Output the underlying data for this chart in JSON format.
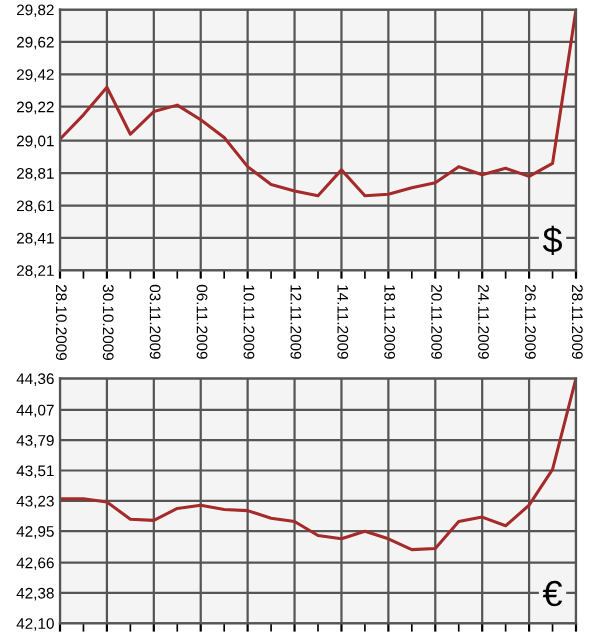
{
  "chart_data": [
    {
      "type": "line",
      "categories": [
        "28.10.2009",
        null,
        "30.10.2009",
        null,
        "03.11.2009",
        null,
        "06.11.2009",
        null,
        "10.11.2009",
        null,
        "12.11.2009",
        null,
        "14.11.2009",
        null,
        "18.11.2009",
        null,
        "20.11.2009",
        null,
        "24.11.2009",
        null,
        "26.11.2009",
        null,
        "28.11.2009"
      ],
      "series": [
        {
          "color": "#a52a2a",
          "values": [
            29.02,
            29.17,
            29.34,
            29.05,
            29.19,
            29.23,
            29.14,
            29.03,
            28.85,
            28.74,
            28.7,
            28.67,
            28.83,
            28.67,
            28.68,
            28.72,
            28.75,
            28.85,
            28.8,
            28.84,
            28.79,
            28.87,
            29.82
          ]
        }
      ],
      "ylim": [
        28.21,
        29.82
      ],
      "yticks": [
        {
          "value": 28.21,
          "label": "28,21"
        },
        {
          "value": 28.41,
          "label": "28,41"
        },
        {
          "value": 28.61,
          "label": "28,61"
        },
        {
          "value": 28.81,
          "label": "28,81"
        },
        {
          "value": 29.01,
          "label": "29,01"
        },
        {
          "value": 29.22,
          "label": "29,22"
        },
        {
          "value": 29.42,
          "label": "29,42"
        },
        {
          "value": 29.62,
          "label": "29,62"
        },
        {
          "value": 29.82,
          "label": "29,82"
        }
      ],
      "grid": true,
      "annotations": [
        "$"
      ]
    },
    {
      "type": "line",
      "categories": [
        "28.10.2009",
        null,
        "30.10.2009",
        null,
        "03.11.2009",
        null,
        "06.11.2009",
        null,
        "10.11.2009",
        null,
        "12.11.2009",
        null,
        "14.11.2009",
        null,
        "18.11.2009",
        null,
        "20.11.2009",
        null,
        "24.11.2009",
        null,
        "26.11.2009",
        null,
        "28.11.2009"
      ],
      "series": [
        {
          "color": "#a52a2a",
          "values": [
            43.25,
            43.25,
            43.22,
            43.06,
            43.05,
            43.16,
            43.19,
            43.15,
            43.14,
            43.07,
            43.04,
            42.91,
            42.88,
            42.95,
            42.88,
            42.78,
            42.79,
            43.04,
            43.08,
            43.0,
            43.19,
            43.52,
            44.36
          ]
        }
      ],
      "ylim": [
        42.1,
        44.36
      ],
      "yticks": [
        {
          "value": 42.1,
          "label": "42,10"
        },
        {
          "value": 42.38,
          "label": "42,38"
        },
        {
          "value": 42.66,
          "label": "42,66"
        },
        {
          "value": 42.95,
          "label": "42,95"
        },
        {
          "value": 43.23,
          "label": "43,23"
        },
        {
          "value": 43.51,
          "label": "43,51"
        },
        {
          "value": 43.79,
          "label": "43,79"
        },
        {
          "value": 44.07,
          "label": "44,07"
        },
        {
          "value": 44.36,
          "label": "44,36"
        }
      ],
      "grid": true,
      "tick_labels": "y",
      "annotations": [
        "€"
      ]
    }
  ]
}
